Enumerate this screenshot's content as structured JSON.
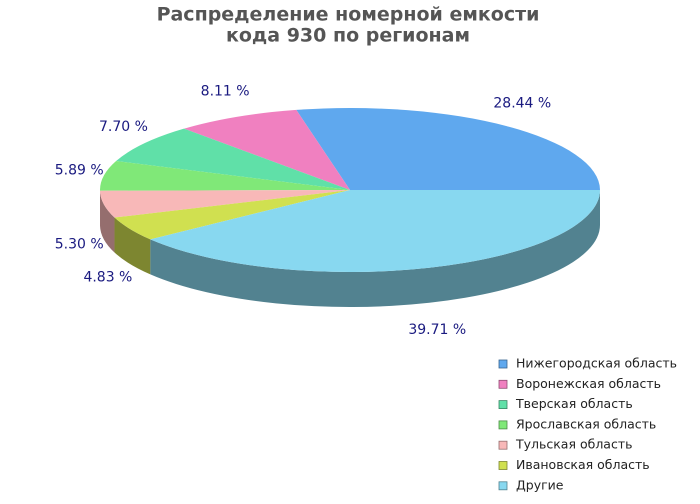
{
  "chart_data": {
    "type": "pie3d",
    "title": [
      "Распределение номерной емкости",
      "кода 930 по регионам"
    ],
    "categories": [
      "Нижегородская область",
      "Воронежская область",
      "Тверская область",
      "Ярославская область",
      "Тульская область",
      "Ивановская область",
      "Другие"
    ],
    "values": [
      28.44,
      8.11,
      7.7,
      5.89,
      5.3,
      4.83,
      39.71
    ],
    "value_labels": [
      "28.44 %",
      "8.11 %",
      "7.70 %",
      "5.89 %",
      "5.30 %",
      "4.83 %",
      "39.71 %"
    ],
    "colors": [
      "#5fa8ee",
      "#f080c0",
      "#60e0a8",
      "#80e878",
      "#f8b8b8",
      "#d0e050",
      "#88d8f0"
    ],
    "legend_position": "bottom-right"
  }
}
